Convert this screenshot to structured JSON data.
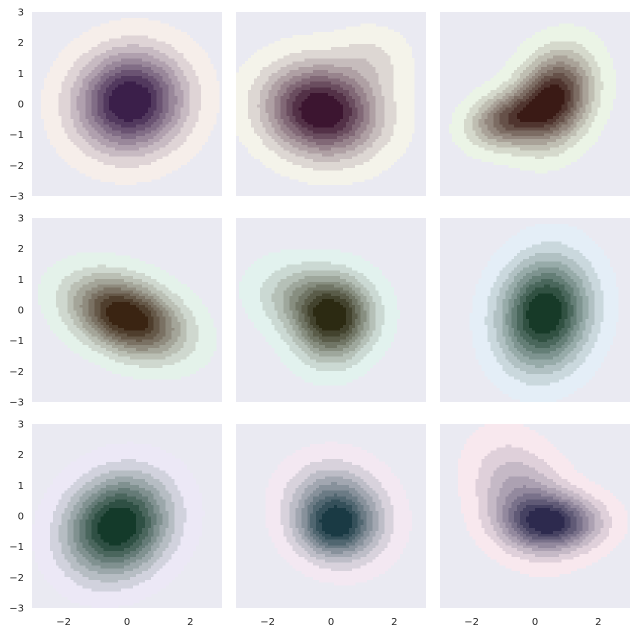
{
  "chart_data": {
    "type": "kde_grid",
    "rows": 3,
    "cols": 3,
    "background": "#eaeaf2",
    "xlim": [
      -3,
      3
    ],
    "ylim": [
      -3,
      3
    ],
    "x_ticks": [
      -2,
      0,
      2
    ],
    "y_ticks": [
      -3,
      -2,
      -1,
      0,
      1,
      2,
      3
    ],
    "grid": false,
    "x_tick_labels": [
      "−2",
      "0",
      "2"
    ],
    "y_tick_labels": [
      "−3",
      "−2",
      "−1",
      "0",
      "1",
      "2",
      "3"
    ],
    "panels": [
      {
        "light": "#f6eeea",
        "dark": "#3b1f4a",
        "components": [
          {
            "cx": 0.1,
            "cy": 0.1,
            "sx": 1.15,
            "sy": 1.1,
            "rho": 0.05,
            "w": 1.0
          }
        ]
      },
      {
        "light": "#f4f3ea",
        "dark": "#3c1530",
        "components": [
          {
            "cx": -0.3,
            "cy": -0.2,
            "sx": 1.2,
            "sy": 1.0,
            "rho": -0.1,
            "w": 1.0
          },
          {
            "cx": 1.3,
            "cy": 1.5,
            "sx": 0.8,
            "sy": 0.7,
            "rho": 0.0,
            "w": 0.15
          }
        ]
      },
      {
        "light": "#ebf4e6",
        "dark": "#3a1a15",
        "components": [
          {
            "cx": 0.6,
            "cy": 0.2,
            "sx": 0.8,
            "sy": 1.0,
            "rho": 0.2,
            "w": 0.9
          },
          {
            "cx": -0.9,
            "cy": -0.5,
            "sx": 0.8,
            "sy": 0.6,
            "rho": 0.2,
            "w": 0.6
          }
        ]
      },
      {
        "light": "#e4f2ea",
        "dark": "#3a2412",
        "components": [
          {
            "cx": 0.0,
            "cy": -0.2,
            "sx": 1.15,
            "sy": 0.85,
            "rho": -0.35,
            "w": 1.0
          }
        ]
      },
      {
        "light": "#e2f2ee",
        "dark": "#2c2a12",
        "components": [
          {
            "cx": 0.1,
            "cy": -0.4,
            "sx": 0.8,
            "sy": 0.9,
            "rho": 0.1,
            "w": 0.8
          },
          {
            "cx": -0.6,
            "cy": 0.3,
            "sx": 1.1,
            "sy": 0.8,
            "rho": -0.2,
            "w": 0.5
          }
        ]
      },
      {
        "light": "#e4eef7",
        "dark": "#173a28",
        "components": [
          {
            "cx": 0.3,
            "cy": -0.1,
            "sx": 0.95,
            "sy": 1.2,
            "rho": 0.1,
            "w": 1.0
          }
        ]
      },
      {
        "light": "#ece8f6",
        "dark": "#143a2a",
        "components": [
          {
            "cx": -0.3,
            "cy": -0.3,
            "sx": 1.1,
            "sy": 1.1,
            "rho": 0.15,
            "w": 1.0
          }
        ]
      },
      {
        "light": "#f3e8f2",
        "dark": "#1a3a44",
        "components": [
          {
            "cx": 0.2,
            "cy": 0.1,
            "sx": 1.0,
            "sy": 1.0,
            "rho": -0.1,
            "w": 1.0
          },
          {
            "cx": 0.1,
            "cy": -0.4,
            "sx": 0.7,
            "sy": 0.6,
            "rho": 0.0,
            "w": 0.5
          }
        ]
      },
      {
        "light": "#f8e8ee",
        "dark": "#2d2a4e",
        "components": [
          {
            "cx": 0.6,
            "cy": -0.2,
            "sx": 1.0,
            "sy": 0.6,
            "rho": 0.0,
            "w": 1.0
          },
          {
            "cx": -0.4,
            "cy": 0.6,
            "sx": 1.0,
            "sy": 1.2,
            "rho": -0.3,
            "w": 0.55
          }
        ]
      }
    ]
  }
}
